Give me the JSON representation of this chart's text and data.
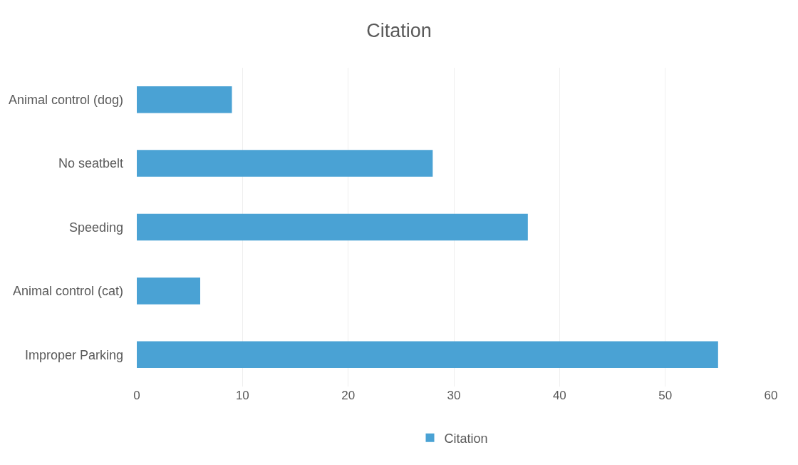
{
  "chart_data": {
    "type": "bar",
    "orientation": "horizontal",
    "title": "Citation",
    "categories": [
      "Animal control (dog)",
      "No seatbelt",
      "Speeding",
      "Animal control (cat)",
      "Improper Parking"
    ],
    "series": [
      {
        "name": "Citation",
        "color": "#4aa2d4",
        "values": [
          9,
          28,
          37,
          6,
          55
        ]
      }
    ],
    "xlim": [
      0,
      60
    ],
    "xticks": [
      0,
      10,
      20,
      30,
      40,
      50,
      60
    ],
    "grid": "x",
    "legend": "bottom"
  }
}
